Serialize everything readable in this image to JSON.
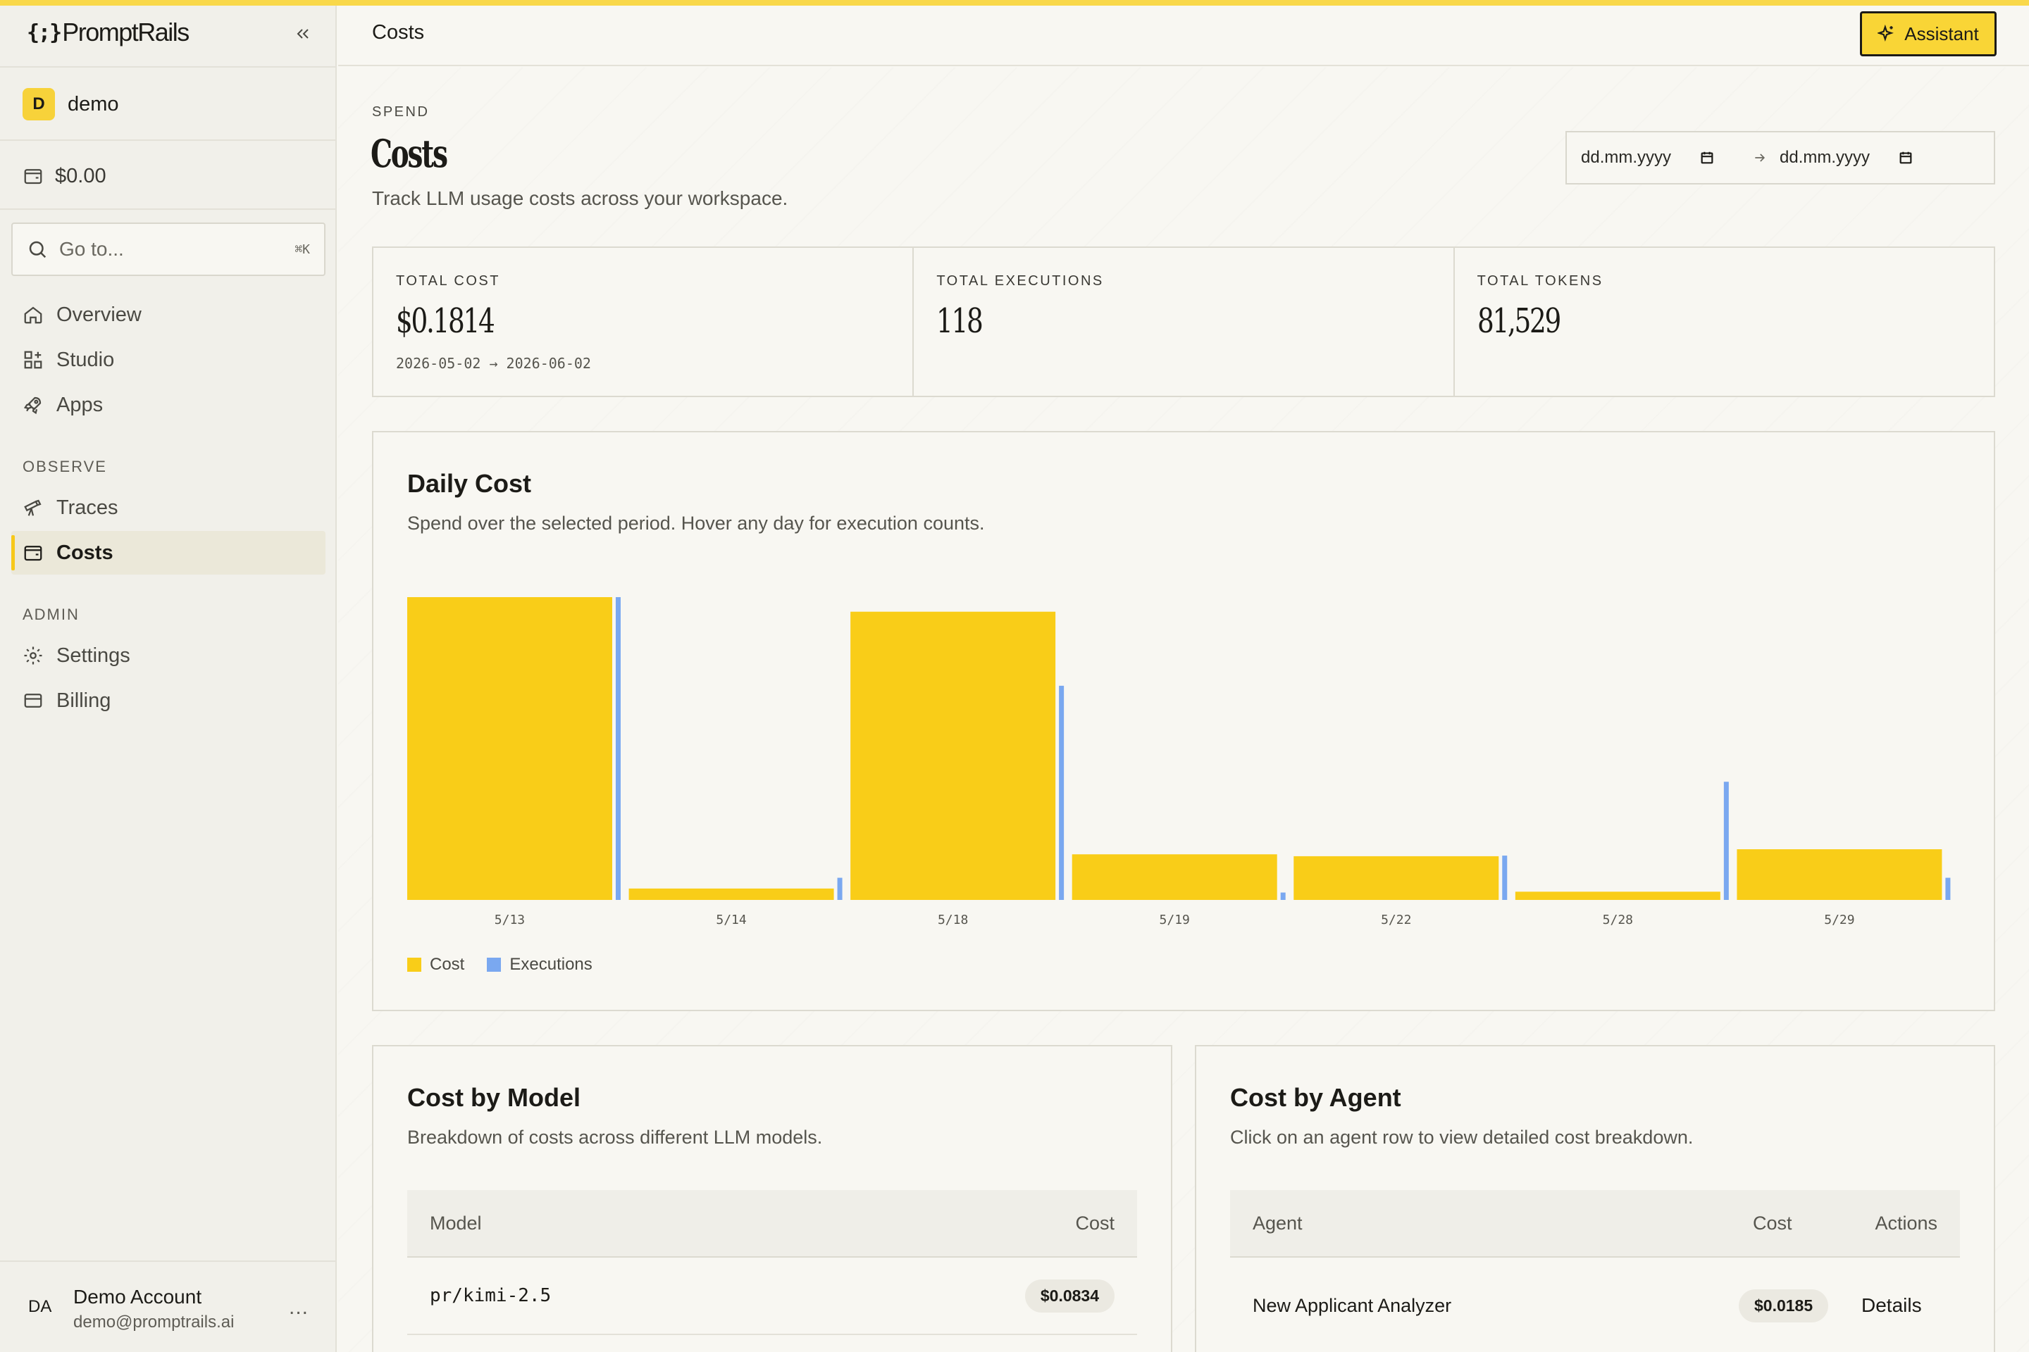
{
  "brand": {
    "mark": "{;}",
    "name": "PromptRails"
  },
  "workspace": {
    "initial": "D",
    "name": "demo"
  },
  "balance": "$0.00",
  "search": {
    "placeholder": "Go to...",
    "shortcut": "⌘K"
  },
  "nav": {
    "main": [
      {
        "label": "Overview",
        "icon": "home-icon"
      },
      {
        "label": "Studio",
        "icon": "grid-plus-icon"
      },
      {
        "label": "Apps",
        "icon": "rocket-icon"
      }
    ],
    "observe_title": "OBSERVE",
    "observe": [
      {
        "label": "Traces",
        "icon": "telescope-icon"
      },
      {
        "label": "Costs",
        "icon": "wallet-icon",
        "active": true
      }
    ],
    "admin_title": "ADMIN",
    "admin": [
      {
        "label": "Settings",
        "icon": "gear-icon"
      },
      {
        "label": "Billing",
        "icon": "card-icon"
      }
    ]
  },
  "account": {
    "initials": "DA",
    "name": "Demo Account",
    "email": "demo@promptrails.ai",
    "more": "..."
  },
  "header": {
    "title": "Costs",
    "assistant_label": "Assistant"
  },
  "page": {
    "eyebrow": "SPEND",
    "title": "Costs",
    "subtitle": "Track LLM usage costs across your workspace.",
    "date_from_placeholder": "dd.mm.yyyy",
    "date_to_placeholder": "dd.mm.yyyy"
  },
  "kpis": [
    {
      "label": "TOTAL COST",
      "value": "$0.1814",
      "range": "2026-05-02 → 2026-06-02"
    },
    {
      "label": "TOTAL EXECUTIONS",
      "value": "118"
    },
    {
      "label": "TOTAL TOKENS",
      "value": "81,529"
    }
  ],
  "daily_cost": {
    "title": "Daily Cost",
    "subtitle": "Spend over the selected period. Hover any day for execution counts.",
    "legend": {
      "cost": "Cost",
      "executions": "Executions"
    }
  },
  "chart_data": {
    "type": "bar",
    "categories": [
      "5/13",
      "5/14",
      "5/18",
      "5/19",
      "5/22",
      "5/28",
      "5/29"
    ],
    "series": [
      {
        "name": "Cost",
        "color": "#f9cd18",
        "values": [
          0.0478,
          0.0018,
          0.0455,
          0.0072,
          0.0069,
          0.0013,
          0.008
        ]
      },
      {
        "name": "Executions",
        "color": "#7aa8f0",
        "values": [
          41,
          3,
          29,
          1,
          6,
          16,
          3
        ]
      }
    ],
    "grid": false,
    "legend_position": "bottom-left"
  },
  "cost_by_model": {
    "title": "Cost by Model",
    "subtitle": "Breakdown of costs across different LLM models.",
    "columns": [
      "Model",
      "Cost"
    ],
    "rows": [
      {
        "model": "pr/kimi-2.5",
        "cost": "$0.0834"
      }
    ]
  },
  "cost_by_agent": {
    "title": "Cost by Agent",
    "subtitle": "Click on an agent row to view detailed cost breakdown.",
    "columns": [
      "Agent",
      "Cost",
      "Actions"
    ],
    "rows": [
      {
        "agent": "New Applicant Analyzer",
        "cost": "$0.0185",
        "action": "Details"
      }
    ]
  },
  "colors": {
    "accent": "#f9d536",
    "cost_bar": "#f9cd18",
    "executions_bar": "#7aa8f0"
  }
}
